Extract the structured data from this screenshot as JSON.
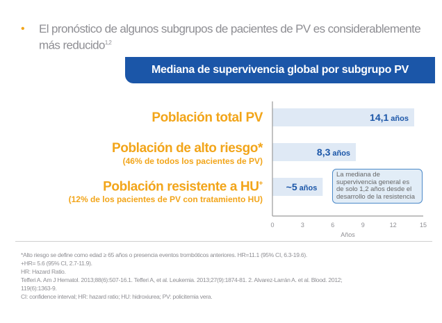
{
  "bullet": {
    "marker": "•",
    "text": "El pronóstico de algunos subgrupos de pacientes de PV es considerablemente más reducido",
    "refs": "1,2"
  },
  "banner": {
    "title": "Mediana de supervivencia global por subgrupo PV"
  },
  "rows": [
    {
      "label": "Población total PV",
      "sub": "",
      "sup": ""
    },
    {
      "label": "Población de alto riesgo*",
      "sub": "(46% de todos los pacientes de PV)",
      "sup": ""
    },
    {
      "label": "Población resistente a HU",
      "sub": "(12% de los pacientes de PV con tratamiento HU)",
      "sup": "+"
    }
  ],
  "note": {
    "text": "La mediana de supervivencia general es de solo 1,2 años desde el desarrollo de la resistencia"
  },
  "colors": {
    "accent": "#f2a51a",
    "banner": "#1b56a8",
    "bar": "#dfe9f5",
    "barText": "#1b56a8",
    "note_border": "#4a88c8"
  },
  "chart_data": {
    "type": "bar",
    "orientation": "horizontal",
    "categories": [
      "Población total PV",
      "Población de alto riesgo*",
      "Población resistente a HU+"
    ],
    "values": [
      14.1,
      8.3,
      5
    ],
    "value_labels": [
      "14,1",
      "8,3",
      "~5"
    ],
    "unit_label": "años",
    "xlabel": "Años",
    "xlim": [
      0,
      15
    ],
    "xticks": [
      0,
      3,
      6,
      9,
      12,
      15
    ],
    "grid": false
  },
  "footnotes": [
    "*Alto riesgo se define como edad ≥ 65 años o presencia eventos trombóticos anteriores. HR=11.1 (95% CI, 6.3-19.6).",
    "+HR= 5.6 (95% CI, 2.7-11.9).",
    "HR: Hazard Ratio.",
    "Tefferi A. Am J Hematol. 2013;88(6):507-16.1. Tefferi A, et al. Leukemia. 2013;27(9):1874-81. 2. Alvarez-Larrán A. et al. Blood. 2012;",
    "119(6):1363-9.",
    "CI: confidence interval; HR: hazard ratio; HU: hidroxiurea; PV: policitemia vera."
  ]
}
